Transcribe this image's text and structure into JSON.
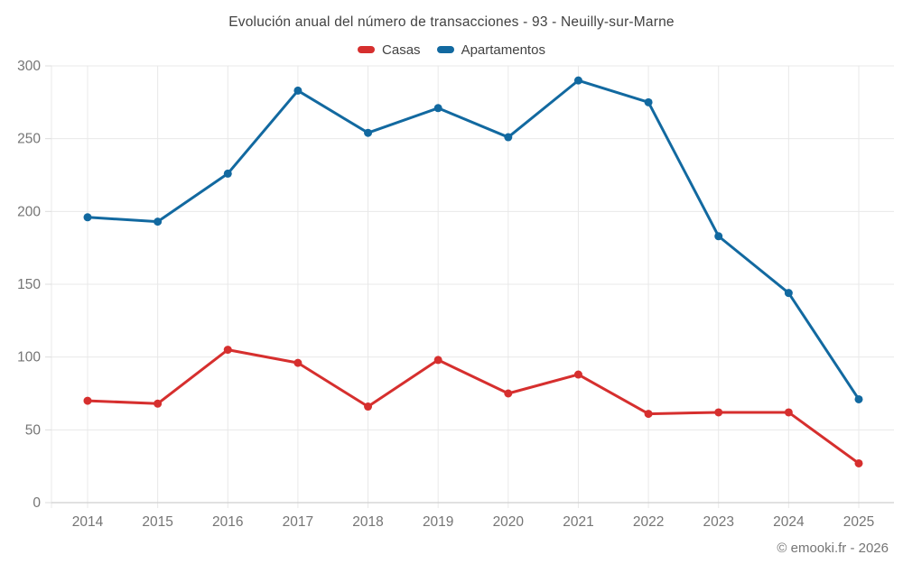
{
  "title": "Evolución anual del número de transacciones - 93 - Neuilly-sur-Marne",
  "footer": "© emooki.fr - 2026",
  "colors": {
    "casas": "#d62f2e",
    "apartamentos": "#1269a0",
    "grid": "#e8e8e8",
    "axis_line": "#cfcfcf",
    "tick": "#dcdcdc",
    "axis_text": "#757575",
    "title_text": "#424242"
  },
  "chart_data": {
    "type": "line",
    "title": "Evolución anual del número de transacciones - 93 - Neuilly-sur-Marne",
    "categories": [
      "2014",
      "2015",
      "2016",
      "2017",
      "2018",
      "2019",
      "2020",
      "2021",
      "2022",
      "2023",
      "2024",
      "2025"
    ],
    "series": [
      {
        "name": "Casas",
        "color": "#d62f2e",
        "values": [
          70,
          68,
          105,
          96,
          66,
          98,
          75,
          88,
          61,
          62,
          62,
          27
        ]
      },
      {
        "name": "Apartamentos",
        "color": "#1269a0",
        "values": [
          196,
          193,
          226,
          283,
          254,
          271,
          251,
          290,
          275,
          183,
          144,
          71
        ]
      }
    ],
    "xlabel": "",
    "ylabel": "",
    "ylim": [
      0,
      300
    ],
    "y_ticks": [
      0,
      50,
      100,
      150,
      200,
      250,
      300
    ],
    "grid": true,
    "legend_position": "top"
  }
}
